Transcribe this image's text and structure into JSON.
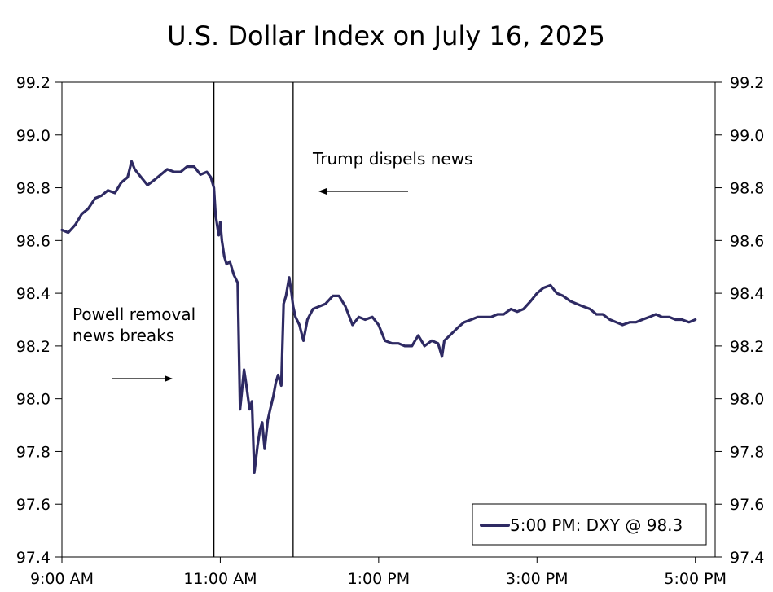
{
  "chart_data": {
    "type": "line",
    "title": "U.S. Dollar Index on July 16, 2025",
    "xlabel": "",
    "ylabel": "",
    "x_tick_labels": [
      "9:00 AM",
      "11:00 AM",
      "1:00 PM",
      "3:00 PM",
      "5:00 PM"
    ],
    "x_tick_hours": [
      9,
      11,
      13,
      15,
      17
    ],
    "xlim_hours": [
      9,
      17.25
    ],
    "y_ticks": [
      "99.2",
      "99.0",
      "98.8",
      "98.6",
      "98.4",
      "98.2",
      "98.0",
      "97.8",
      "97.6",
      "97.4"
    ],
    "ylim": [
      97.4,
      99.2
    ],
    "grid": false,
    "right_axis_mirrors_left": true,
    "series": [
      {
        "name": "5:00 PM: DXY @ 98.3",
        "color": "#2e2a63",
        "x_hours": [
          9.0,
          9.08,
          9.17,
          9.25,
          9.33,
          9.42,
          9.5,
          9.58,
          9.67,
          9.75,
          9.83,
          9.88,
          9.92,
          10.0,
          10.08,
          10.17,
          10.25,
          10.33,
          10.42,
          10.5,
          10.58,
          10.67,
          10.75,
          10.83,
          10.88,
          10.92,
          10.94,
          10.96,
          10.98,
          11.0,
          11.02,
          11.05,
          11.08,
          11.12,
          11.17,
          11.22,
          11.25,
          11.3,
          11.33,
          11.37,
          11.4,
          11.43,
          11.47,
          11.5,
          11.53,
          11.56,
          11.6,
          11.63,
          11.67,
          11.7,
          11.73,
          11.77,
          11.8,
          11.83,
          11.87,
          11.9,
          11.92,
          11.95,
          12.0,
          12.05,
          12.1,
          12.17,
          12.25,
          12.33,
          12.42,
          12.5,
          12.58,
          12.67,
          12.75,
          12.83,
          12.92,
          13.0,
          13.08,
          13.17,
          13.25,
          13.33,
          13.42,
          13.5,
          13.58,
          13.67,
          13.75,
          13.8,
          13.83,
          13.9,
          14.0,
          14.08,
          14.17,
          14.25,
          14.33,
          14.42,
          14.5,
          14.58,
          14.67,
          14.75,
          14.83,
          14.92,
          15.0,
          15.08,
          15.17,
          15.25,
          15.33,
          15.42,
          15.5,
          15.58,
          15.67,
          15.75,
          15.83,
          15.92,
          16.0,
          16.08,
          16.17,
          16.25,
          16.33,
          16.42,
          16.5,
          16.58,
          16.67,
          16.75,
          16.83,
          16.92,
          17.0
        ],
        "values": [
          98.64,
          98.63,
          98.66,
          98.7,
          98.72,
          98.76,
          98.77,
          98.79,
          98.78,
          98.82,
          98.84,
          98.9,
          98.87,
          98.84,
          98.81,
          98.83,
          98.85,
          98.87,
          98.86,
          98.86,
          98.88,
          98.88,
          98.85,
          98.86,
          98.84,
          98.8,
          98.7,
          98.66,
          98.62,
          98.67,
          98.6,
          98.54,
          98.51,
          98.52,
          98.47,
          98.44,
          97.96,
          98.11,
          98.05,
          97.96,
          97.99,
          97.72,
          97.82,
          97.88,
          97.91,
          97.81,
          97.92,
          97.96,
          98.01,
          98.06,
          98.09,
          98.05,
          98.36,
          98.39,
          98.46,
          98.4,
          98.35,
          98.31,
          98.28,
          98.22,
          98.3,
          98.34,
          98.35,
          98.36,
          98.39,
          98.39,
          98.35,
          98.28,
          98.31,
          98.3,
          98.31,
          98.28,
          98.22,
          98.21,
          98.21,
          98.2,
          98.2,
          98.24,
          98.2,
          98.22,
          98.21,
          98.16,
          98.22,
          98.24,
          98.27,
          98.29,
          98.3,
          98.31,
          98.31,
          98.31,
          98.32,
          98.32,
          98.34,
          98.33,
          98.34,
          98.37,
          98.4,
          98.42,
          98.43,
          98.4,
          98.39,
          98.37,
          98.36,
          98.35,
          98.34,
          98.32,
          98.32,
          98.3,
          98.29,
          98.28,
          98.29,
          98.29,
          98.3,
          98.31,
          98.32,
          98.31,
          98.31,
          98.3,
          98.3,
          98.29,
          98.3
        ]
      }
    ],
    "vertical_lines_hours": [
      10.92,
      11.92
    ],
    "annotations": [
      {
        "text": "Powell removal news breaks",
        "lines": [
          "Powell removal",
          "news breaks"
        ],
        "arrow_direction": "right"
      },
      {
        "text": "Trump dispels news",
        "lines": [
          "Trump dispels news"
        ],
        "arrow_direction": "left"
      }
    ],
    "legend": {
      "placement": "bottom-right",
      "entries": [
        "5:00 PM: DXY @ 98.3"
      ]
    }
  }
}
